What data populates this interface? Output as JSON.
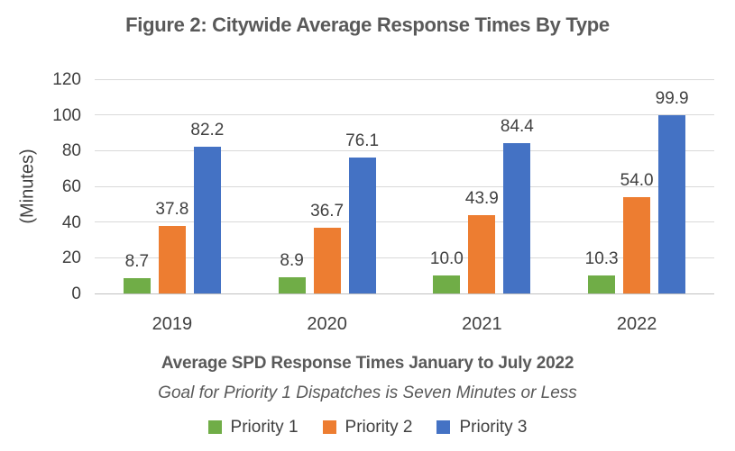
{
  "chart_data": {
    "type": "bar",
    "title": "Figure 2: Citywide Average Response Times By Type",
    "categories": [
      "2019",
      "2020",
      "2021",
      "2022"
    ],
    "series": [
      {
        "name": "Priority 1",
        "color": "#70AD47",
        "values": [
          8.7,
          8.9,
          10.0,
          10.3
        ],
        "labels": [
          "8.7",
          "8.9",
          "10.0",
          "10.3"
        ]
      },
      {
        "name": "Priority 2",
        "color": "#ED7D31",
        "values": [
          37.8,
          36.7,
          43.9,
          54.0
        ],
        "labels": [
          "37.8",
          "36.7",
          "43.9",
          "54.0"
        ]
      },
      {
        "name": "Priority 3",
        "color": "#4472C4",
        "values": [
          82.2,
          76.1,
          84.4,
          99.9
        ],
        "labels": [
          "82.2",
          "76.1",
          "84.4",
          "99.9"
        ]
      }
    ],
    "ylabel": "(Minutes)",
    "xlabel": "",
    "ylim": [
      0,
      120
    ],
    "ytick_step": 20,
    "ytick_labels": [
      "0",
      "20",
      "40",
      "60",
      "80",
      "100",
      "120"
    ],
    "grid": true,
    "legend_position": "bottom",
    "caption_bold": "Average SPD Response Times January to July 2022",
    "caption_italic": "Goal for Priority 1 Dispatches is Seven Minutes or Less"
  },
  "colors": {
    "title_text": "#595959",
    "axis_text": "#404040",
    "gridline": "#D9D9D9",
    "axis_line": "#BFBFBF",
    "background": "#FFFFFF"
  }
}
